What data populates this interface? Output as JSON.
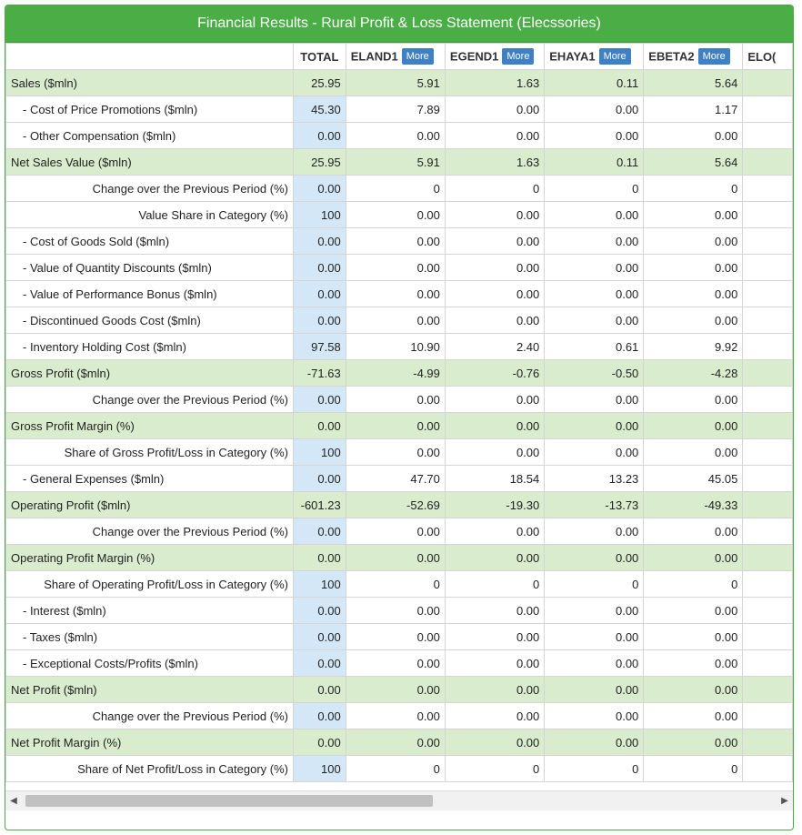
{
  "title": "Financial Results - Rural Profit & Loss Statement (Elecssories)",
  "more_label": "More",
  "columns": [
    "TOTAL",
    "ELAND1",
    "EGEND1",
    "EHAYA1",
    "EBETA2",
    "ELO("
  ],
  "rows": [
    {
      "label": "Sales ($mln)",
      "style": "green",
      "values": [
        "25.95",
        "5.91",
        "1.63",
        "0.11",
        "5.64",
        ""
      ]
    },
    {
      "label": "- Cost of Price Promotions ($mln)",
      "style": "indent",
      "values": [
        "45.30",
        "7.89",
        "0.00",
        "0.00",
        "1.17",
        ""
      ]
    },
    {
      "label": "- Other Compensation ($mln)",
      "style": "indent",
      "values": [
        "0.00",
        "0.00",
        "0.00",
        "0.00",
        "0.00",
        ""
      ]
    },
    {
      "label": "Net Sales Value ($mln)",
      "style": "green",
      "values": [
        "25.95",
        "5.91",
        "1.63",
        "0.11",
        "5.64",
        ""
      ]
    },
    {
      "label": "Change over the Previous Period (%)",
      "style": "right",
      "values": [
        "0.00",
        "0",
        "0",
        "0",
        "0",
        ""
      ]
    },
    {
      "label": "Value Share in Category (%)",
      "style": "right",
      "values": [
        "100",
        "0.00",
        "0.00",
        "0.00",
        "0.00",
        ""
      ]
    },
    {
      "label": "- Cost of Goods Sold ($mln)",
      "style": "indent",
      "values": [
        "0.00",
        "0.00",
        "0.00",
        "0.00",
        "0.00",
        ""
      ]
    },
    {
      "label": "- Value of Quantity Discounts ($mln)",
      "style": "indent",
      "values": [
        "0.00",
        "0.00",
        "0.00",
        "0.00",
        "0.00",
        ""
      ]
    },
    {
      "label": "- Value of Performance Bonus ($mln)",
      "style": "indent",
      "values": [
        "0.00",
        "0.00",
        "0.00",
        "0.00",
        "0.00",
        ""
      ]
    },
    {
      "label": "- Discontinued Goods Cost ($mln)",
      "style": "indent",
      "values": [
        "0.00",
        "0.00",
        "0.00",
        "0.00",
        "0.00",
        ""
      ]
    },
    {
      "label": "- Inventory Holding Cost ($mln)",
      "style": "indent",
      "values": [
        "97.58",
        "10.90",
        "2.40",
        "0.61",
        "9.92",
        ""
      ]
    },
    {
      "label": "Gross Profit ($mln)",
      "style": "green",
      "values": [
        "-71.63",
        "-4.99",
        "-0.76",
        "-0.50",
        "-4.28",
        ""
      ]
    },
    {
      "label": "Change over the Previous Period (%)",
      "style": "right",
      "values": [
        "0.00",
        "0.00",
        "0.00",
        "0.00",
        "0.00",
        ""
      ]
    },
    {
      "label": "Gross Profit Margin (%)",
      "style": "green",
      "values": [
        "0.00",
        "0.00",
        "0.00",
        "0.00",
        "0.00",
        ""
      ]
    },
    {
      "label": "Share of Gross Profit/Loss in Category (%)",
      "style": "right",
      "values": [
        "100",
        "0.00",
        "0.00",
        "0.00",
        "0.00",
        ""
      ]
    },
    {
      "label": "- General Expenses ($mln)",
      "style": "indent",
      "values": [
        "0.00",
        "47.70",
        "18.54",
        "13.23",
        "45.05",
        ""
      ]
    },
    {
      "label": "Operating Profit ($mln)",
      "style": "green",
      "values": [
        "-601.23",
        "-52.69",
        "-19.30",
        "-13.73",
        "-49.33",
        ""
      ]
    },
    {
      "label": "Change over the Previous Period (%)",
      "style": "right",
      "values": [
        "0.00",
        "0.00",
        "0.00",
        "0.00",
        "0.00",
        ""
      ]
    },
    {
      "label": "Operating Profit Margin (%)",
      "style": "green",
      "values": [
        "0.00",
        "0.00",
        "0.00",
        "0.00",
        "0.00",
        ""
      ]
    },
    {
      "label": "Share of Operating Profit/Loss in Category (%)",
      "style": "right",
      "values": [
        "100",
        "0",
        "0",
        "0",
        "0",
        ""
      ]
    },
    {
      "label": "- Interest ($mln)",
      "style": "indent",
      "values": [
        "0.00",
        "0.00",
        "0.00",
        "0.00",
        "0.00",
        ""
      ]
    },
    {
      "label": "- Taxes ($mln)",
      "style": "indent",
      "values": [
        "0.00",
        "0.00",
        "0.00",
        "0.00",
        "0.00",
        ""
      ]
    },
    {
      "label": "- Exceptional Costs/Profits ($mln)",
      "style": "indent",
      "values": [
        "0.00",
        "0.00",
        "0.00",
        "0.00",
        "0.00",
        ""
      ]
    },
    {
      "label": "Net Profit ($mln)",
      "style": "green",
      "values": [
        "0.00",
        "0.00",
        "0.00",
        "0.00",
        "0.00",
        ""
      ]
    },
    {
      "label": "Change over the Previous Period (%)",
      "style": "right",
      "values": [
        "0.00",
        "0.00",
        "0.00",
        "0.00",
        "0.00",
        ""
      ]
    },
    {
      "label": "Net Profit Margin (%)",
      "style": "green",
      "values": [
        "0.00",
        "0.00",
        "0.00",
        "0.00",
        "0.00",
        ""
      ]
    },
    {
      "label": "Share of Net Profit/Loss in Category (%)",
      "style": "right",
      "values": [
        "100",
        "0",
        "0",
        "0",
        "0",
        ""
      ]
    }
  ],
  "icons": {
    "scroll_left": "left-arrow-icon",
    "scroll_right": "right-arrow-icon"
  },
  "colors": {
    "title_bar": "#4aad45",
    "section_row": "#d9eccd",
    "total_column": "#d3e7f6",
    "more_button": "#3f7fc3"
  }
}
